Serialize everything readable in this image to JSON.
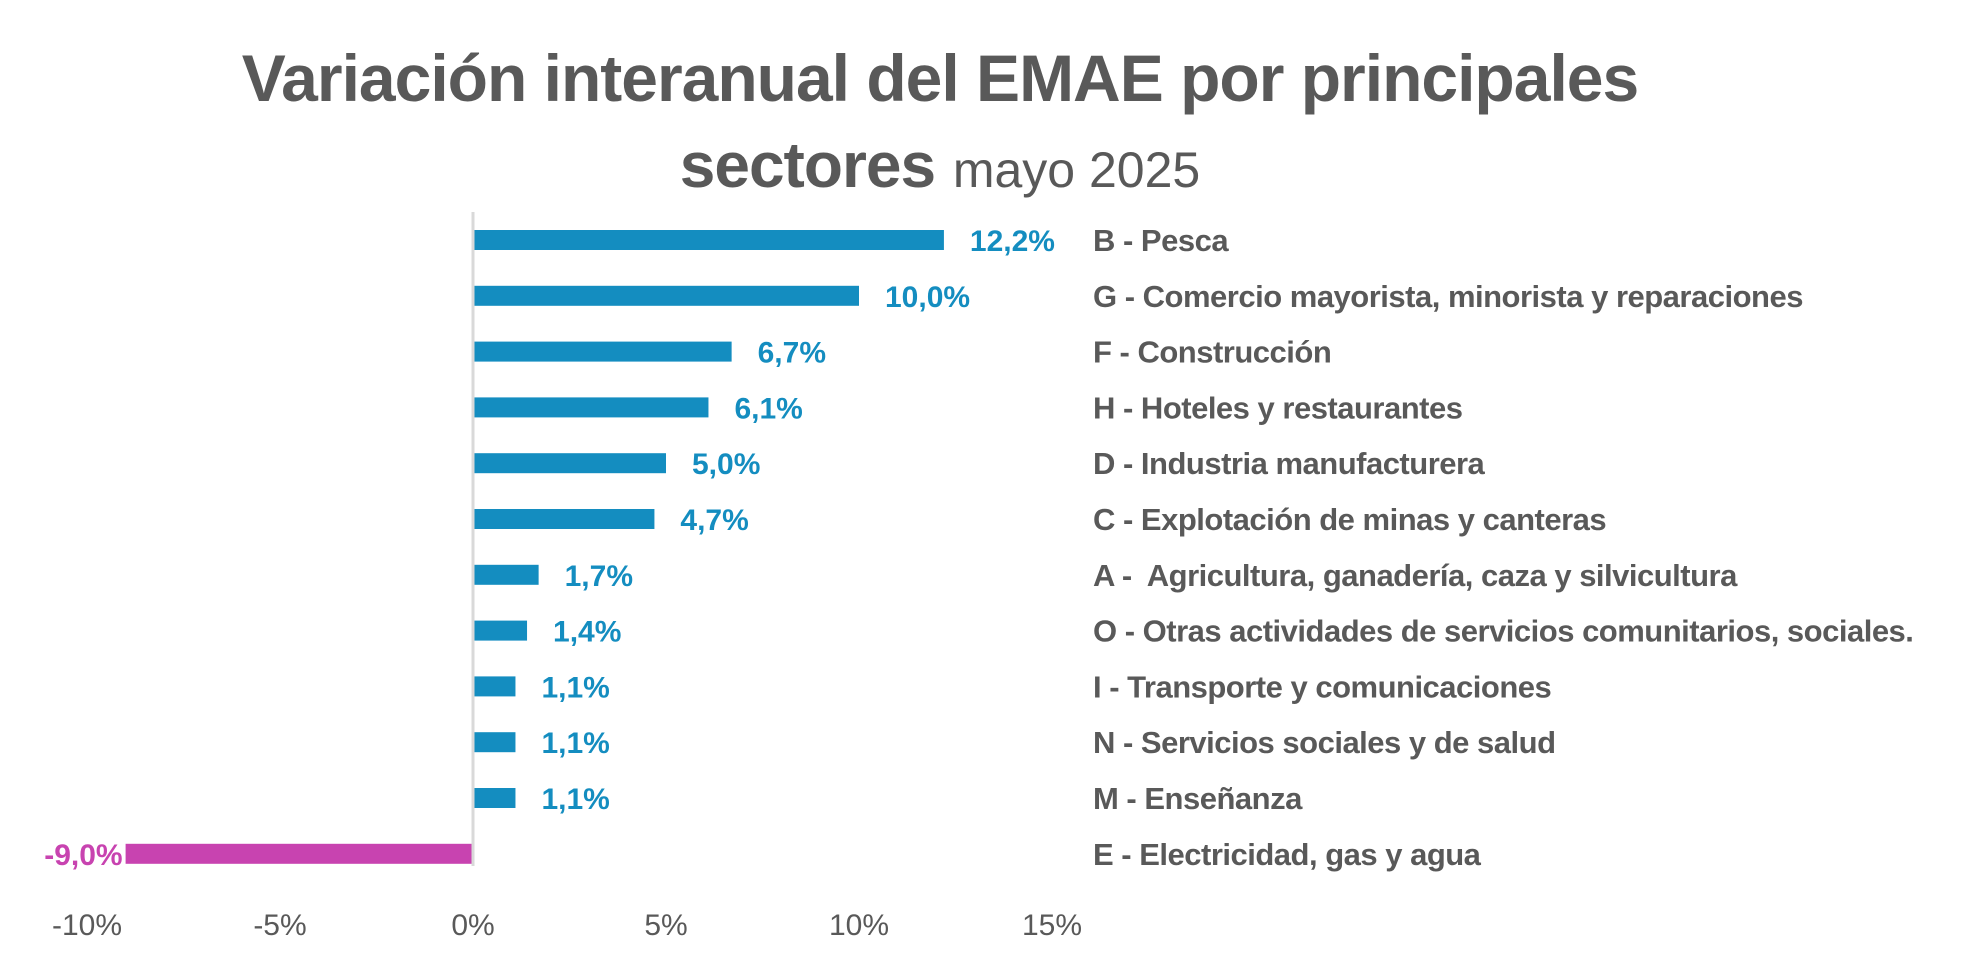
{
  "chart_data": {
    "type": "bar",
    "orientation": "horizontal",
    "title": "Variación interanual del EMAE por principales sectores",
    "title_line1": "Variación interanual del EMAE por principales",
    "title_line2_bold": "sectores",
    "subtitle": "mayo 2025",
    "xlabel": "",
    "ylabel": "",
    "xlim": [
      -10,
      15
    ],
    "xticks": [
      -10,
      -5,
      0,
      5,
      10,
      15
    ],
    "xtick_labels": [
      "-10%",
      "-5%",
      "0%",
      "5%",
      "10%",
      "15%"
    ],
    "grid": false,
    "legend": "none",
    "colors": {
      "positive": "#148DC0",
      "negative": "#C843B0",
      "text": "#595959",
      "axis": "#D9D9D9"
    },
    "categories": [
      "B - Pesca",
      "G - Comercio mayorista, minorista y reparaciones",
      "F - Construcción",
      "H - Hoteles y restaurantes",
      "D - Industria manufacturera",
      "C - Explotación de minas y canteras",
      "A -  Agricultura, ganadería, caza y silvicultura",
      "O - Otras actividades de servicios comunitarios, sociales.",
      "I - Transporte y comunicaciones",
      "N - Servicios sociales y de salud",
      "M - Enseñanza",
      "E - Electricidad, gas y agua"
    ],
    "values": [
      12.2,
      10.0,
      6.7,
      6.1,
      5.0,
      4.7,
      1.7,
      1.4,
      1.1,
      1.1,
      1.1,
      -9.0
    ],
    "data_labels": [
      "12,2%",
      "10,0%",
      "6,7%",
      "6,1%",
      "5,0%",
      "4,7%",
      "1,7%",
      "1,4%",
      "1,1%",
      "1,1%",
      "1,1%",
      "-9,0%"
    ]
  }
}
